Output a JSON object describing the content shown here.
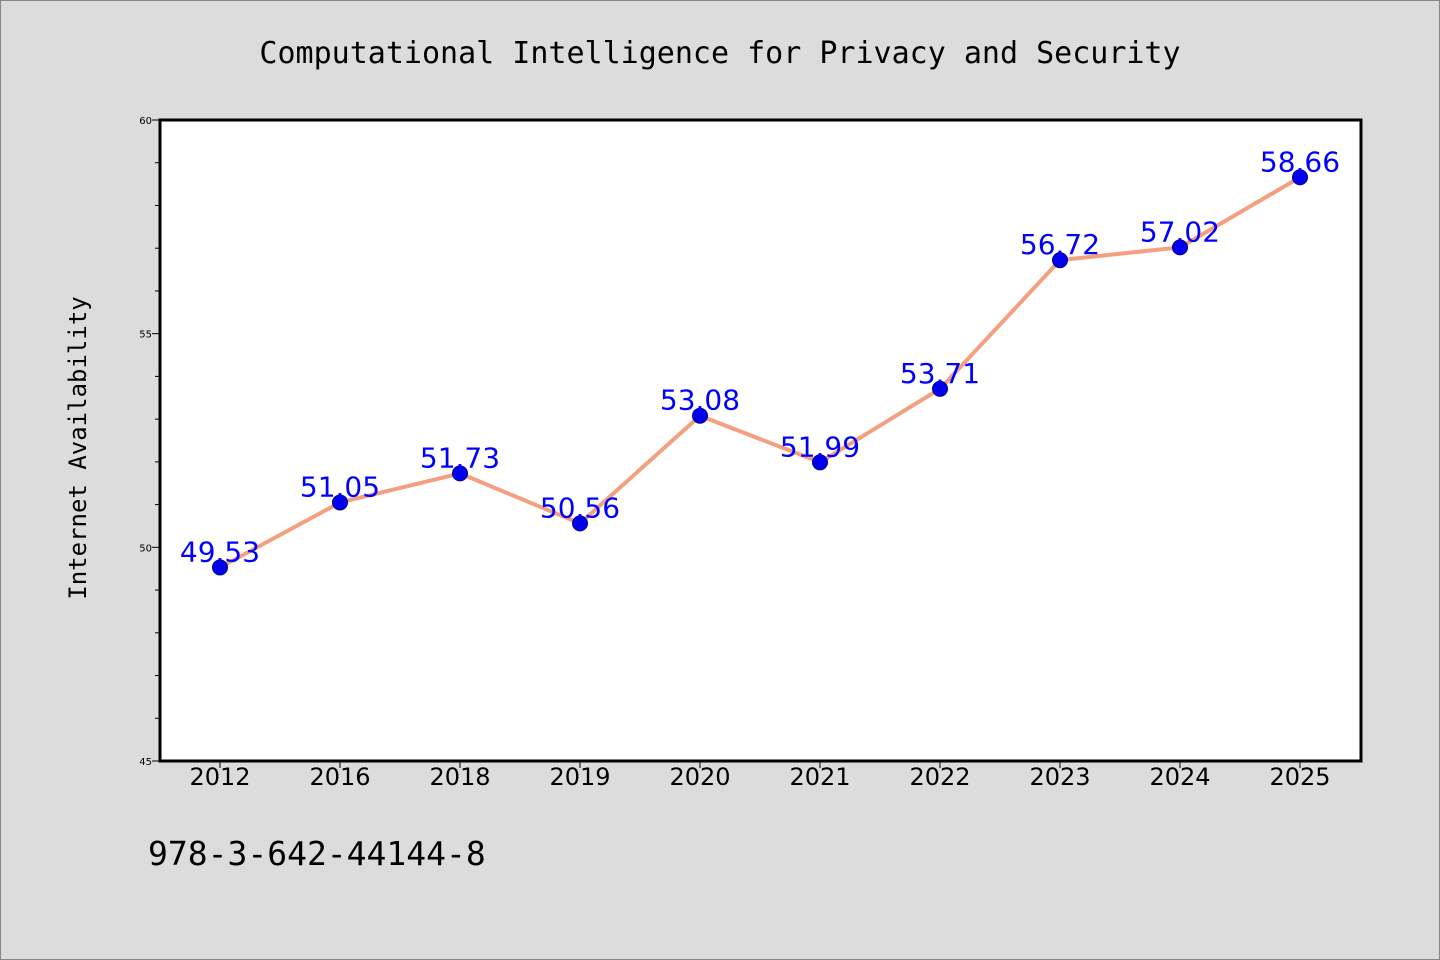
{
  "chart_data": {
    "type": "line",
    "title": "Computational Intelligence for Privacy and Security",
    "xlabel": "",
    "ylabel": "Internet Availability",
    "categories": [
      "2012",
      "2016",
      "2018",
      "2019",
      "2020",
      "2021",
      "2022",
      "2023",
      "2024",
      "2025"
    ],
    "series": [
      {
        "values": [
          49.53,
          51.05,
          51.73,
          50.56,
          53.08,
          51.99,
          53.71,
          56.72,
          57.02,
          58.66
        ],
        "labels": [
          "49.53",
          "51.05",
          "51.73",
          "50.56",
          "53.08",
          "51.99",
          "53.71",
          "56.72",
          "57.02",
          "58.66"
        ]
      }
    ],
    "ylim": [
      45,
      60
    ],
    "yticks": [
      "45",
      "50",
      "55",
      "60"
    ],
    "grid": false,
    "legend": "none",
    "line_color": "#f4a080",
    "marker_color": "#0000ee",
    "label_color": "#0000ff"
  },
  "footer": {
    "isbn": "978-3-642-44144-8"
  }
}
